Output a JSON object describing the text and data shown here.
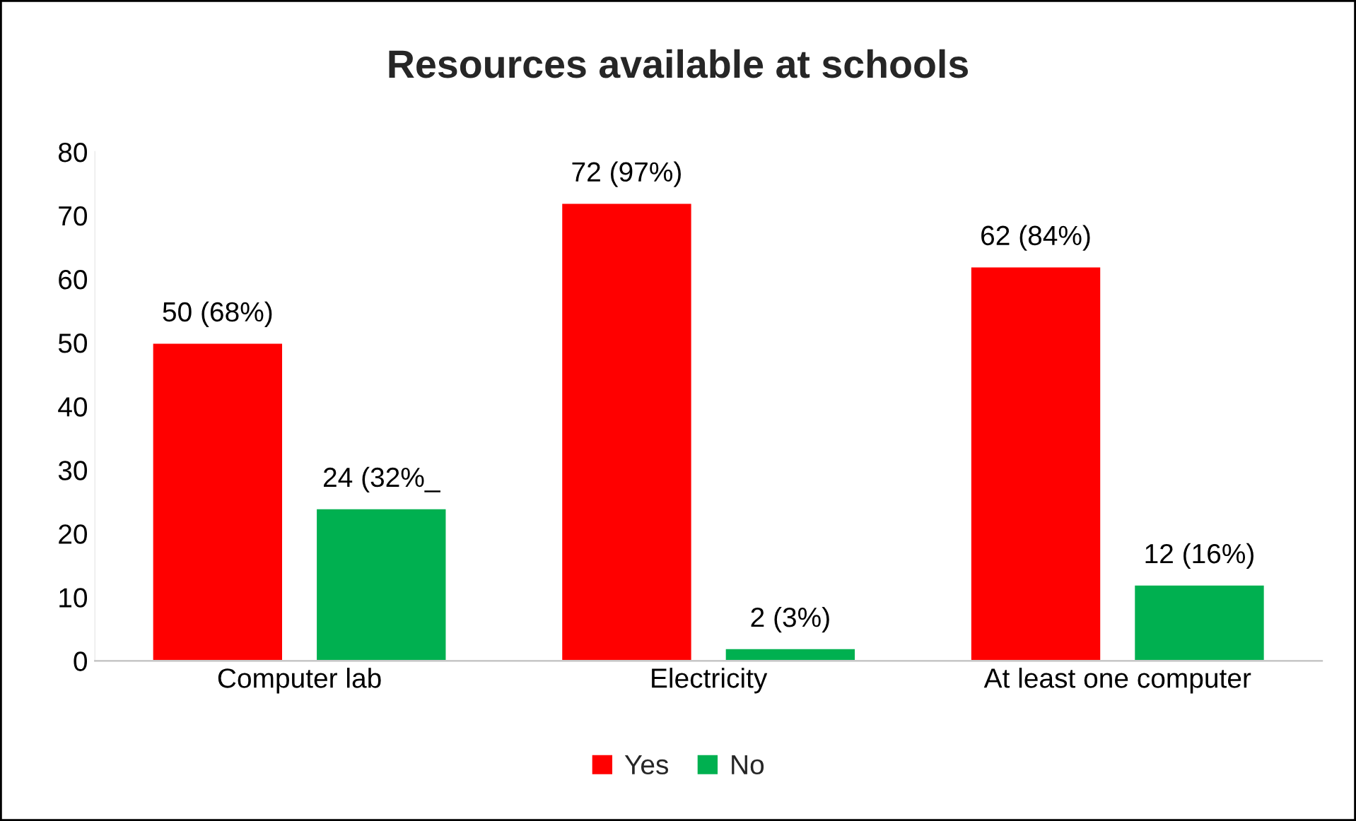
{
  "chart_data": {
    "type": "bar",
    "title": "Resources available at schools",
    "categories": [
      "Computer lab",
      "Electricity",
      "At least one computer"
    ],
    "series": [
      {
        "name": "Yes",
        "color": "#ff0000",
        "values": [
          50,
          72,
          62
        ],
        "value_labels": [
          "50 (68%)",
          "72 (97%)",
          "62 (84%)"
        ]
      },
      {
        "name": "No",
        "color": "#00b050",
        "values": [
          24,
          2,
          12
        ],
        "value_labels": [
          "24 (32%_",
          "2 (3%)",
          "12 (16%)"
        ]
      }
    ],
    "ylim": [
      0,
      80
    ],
    "yticks": [
      0,
      10,
      20,
      30,
      40,
      50,
      60,
      70,
      80
    ],
    "grid": false,
    "legend": "bottom"
  }
}
